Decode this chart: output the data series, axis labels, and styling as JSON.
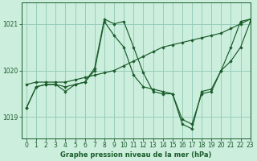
{
  "title": "Graphe pression niveau de la mer (hPa)",
  "bg_color": "#cceedd",
  "grid_color": "#99ccbb",
  "line_color": "#1a5c2a",
  "xlim": [
    -0.5,
    23
  ],
  "ylim": [
    1018.55,
    1021.45
  ],
  "yticks": [
    1019,
    1020,
    1021
  ],
  "xticks": [
    0,
    1,
    2,
    3,
    4,
    5,
    6,
    7,
    8,
    9,
    10,
    11,
    12,
    13,
    14,
    15,
    16,
    17,
    18,
    19,
    20,
    21,
    22,
    23
  ],
  "series": [
    {
      "x": [
        0,
        1,
        2,
        3,
        4,
        5,
        6,
        7,
        8,
        9,
        10,
        11,
        12,
        13,
        14,
        15,
        16,
        17,
        18,
        19,
        20,
        21,
        22,
        23
      ],
      "y": [
        1019.7,
        1019.75,
        1019.75,
        1019.75,
        1019.75,
        1019.8,
        1019.85,
        1019.9,
        1019.95,
        1020.0,
        1020.1,
        1020.2,
        1020.3,
        1020.4,
        1020.5,
        1020.55,
        1020.6,
        1020.65,
        1020.7,
        1020.75,
        1020.8,
        1020.9,
        1021.0,
        1021.1
      ]
    },
    {
      "x": [
        0,
        1,
        2,
        3,
        4,
        5,
        6,
        7,
        8,
        9,
        10,
        11,
        12,
        13,
        14,
        15,
        16,
        17,
        18,
        19,
        20,
        21,
        22,
        23
      ],
      "y": [
        1019.2,
        1019.65,
        1019.7,
        1019.7,
        1019.55,
        1019.7,
        1019.75,
        1020.05,
        1021.1,
        1021.0,
        1021.05,
        1020.5,
        1019.95,
        1019.55,
        1019.5,
        1019.5,
        1018.85,
        1018.75,
        1019.55,
        1019.6,
        1020.0,
        1020.5,
        1021.05,
        1021.1
      ]
    },
    {
      "x": [
        0,
        1,
        2,
        3,
        4,
        5,
        6,
        7,
        8,
        9,
        10,
        11,
        12,
        13,
        14,
        15,
        16,
        17,
        18,
        19,
        20,
        21,
        22,
        23
      ],
      "y": [
        1019.2,
        1019.65,
        1019.7,
        1019.7,
        1019.65,
        1019.7,
        1019.75,
        1020.0,
        1021.05,
        1020.75,
        1020.5,
        1019.9,
        1019.65,
        1019.6,
        1019.55,
        1019.5,
        1018.95,
        1018.85,
        1019.5,
        1019.55,
        1020.0,
        1020.2,
        1020.5,
        1021.05
      ]
    }
  ]
}
